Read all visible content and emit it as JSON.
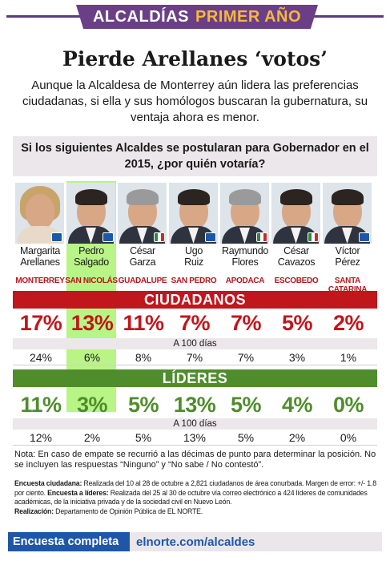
{
  "header": {
    "banner_part1": "ALCALDÍAS",
    "banner_part2": "PRIMER AÑO",
    "headline": "Pierde Arellanes ‘votos’",
    "dek": "Aunque la Alcaldesa de Monterrey aún lidera las preferencias ciudadanas, si ella y sus homólogos buscaran la gubernatura, su ventaja ahora es menor."
  },
  "question": "Si los siguientes Alcaldes se postularan para Gobernador en el 2015, ¿por quién votaría?",
  "colors": {
    "red": "#c0161c",
    "green": "#4f8d2c",
    "highlight": "#b9f486",
    "banner": "#6b3f86",
    "footer_blue": "#1f57a8"
  },
  "candidates": [
    {
      "first": "Margarita",
      "last": "Arellanes",
      "city": "MONTERREY",
      "party_icon": "pan-logo-icon"
    },
    {
      "first": "Pedro",
      "last": "Salgado",
      "city": "SAN NICOLÁS",
      "party_icon": "pan-logo-icon"
    },
    {
      "first": "César",
      "last": "Garza",
      "city": "GUADALUPE",
      "party_icon": "pri-logo-icon"
    },
    {
      "first": "Ugo",
      "last": "Ruiz",
      "city": "SAN PEDRO",
      "party_icon": "pan-logo-icon"
    },
    {
      "first": "Raymundo",
      "last": "Flores",
      "city": "APODACA",
      "party_icon": "pri-logo-icon"
    },
    {
      "first": "César",
      "last": "Cavazos",
      "city": "ESCOBEDO",
      "party_icon": "pri-logo-icon"
    },
    {
      "first": "Víctor",
      "last": "Pérez",
      "city": "SANTA CATARINA",
      "party_icon": "pan-logo-icon"
    }
  ],
  "section_ciudadanos": "CIUDADANOS",
  "section_lideres": "LÍDERES",
  "a100_label": "A 100 días",
  "chart_data": {
    "type": "table",
    "categories": [
      "Margarita Arellanes",
      "Pedro Salgado",
      "César Garza",
      "Ugo Ruiz",
      "Raymundo Flores",
      "César Cavazos",
      "Víctor Pérez"
    ],
    "highlighted_category": "Pedro Salgado",
    "series": [
      {
        "name": "CIUDADANOS",
        "values": [
          17,
          13,
          11,
          7,
          7,
          5,
          2
        ],
        "labels": [
          "17%",
          "13%",
          "11%",
          "7%",
          "7%",
          "5%",
          "2%"
        ]
      },
      {
        "name": "CIUDADANOS A 100 días",
        "values": [
          24,
          6,
          8,
          7,
          7,
          3,
          1
        ],
        "labels": [
          "24%",
          "6%",
          "8%",
          "7%",
          "7%",
          "3%",
          "1%"
        ]
      },
      {
        "name": "LÍDERES",
        "values": [
          11,
          3,
          5,
          13,
          5,
          4,
          0
        ],
        "labels": [
          "11%",
          "3%",
          "5%",
          "13%",
          "5%",
          "4%",
          "0%"
        ]
      },
      {
        "name": "LÍDERES A 100 días",
        "values": [
          12,
          2,
          5,
          13,
          5,
          2,
          0
        ],
        "labels": [
          "12%",
          "2%",
          "5%",
          "13%",
          "5%",
          "2%",
          "0%"
        ]
      }
    ]
  },
  "note": "Nota: En caso de empate se recurrió a las décimas de punto para determinar la posición. No se incluyen las respuestas “Ninguno” y “No sabe / No contestó”.",
  "method": {
    "label1": "Encuesta ciudadana:",
    "text1": " Realizada del 10 al 28 de octubre a 2,821 ciudadanos de área conurbada. Margen de error: +/- 1.8 por ciento. ",
    "label2": "Encuesta a líderes:",
    "text2": " Realizada del 25 al 30 de octubre vía correo electrónico a 424 líderes de comunidades académicas, de la iniciativa privada y de la sociedad civil en Nuevo León.",
    "label3": "Realización:",
    "text3": " Departamento de Opinión Pública de EL NORTE."
  },
  "footer": {
    "left": "Encuesta completa",
    "right": "elnorte.com/alcaldes"
  }
}
